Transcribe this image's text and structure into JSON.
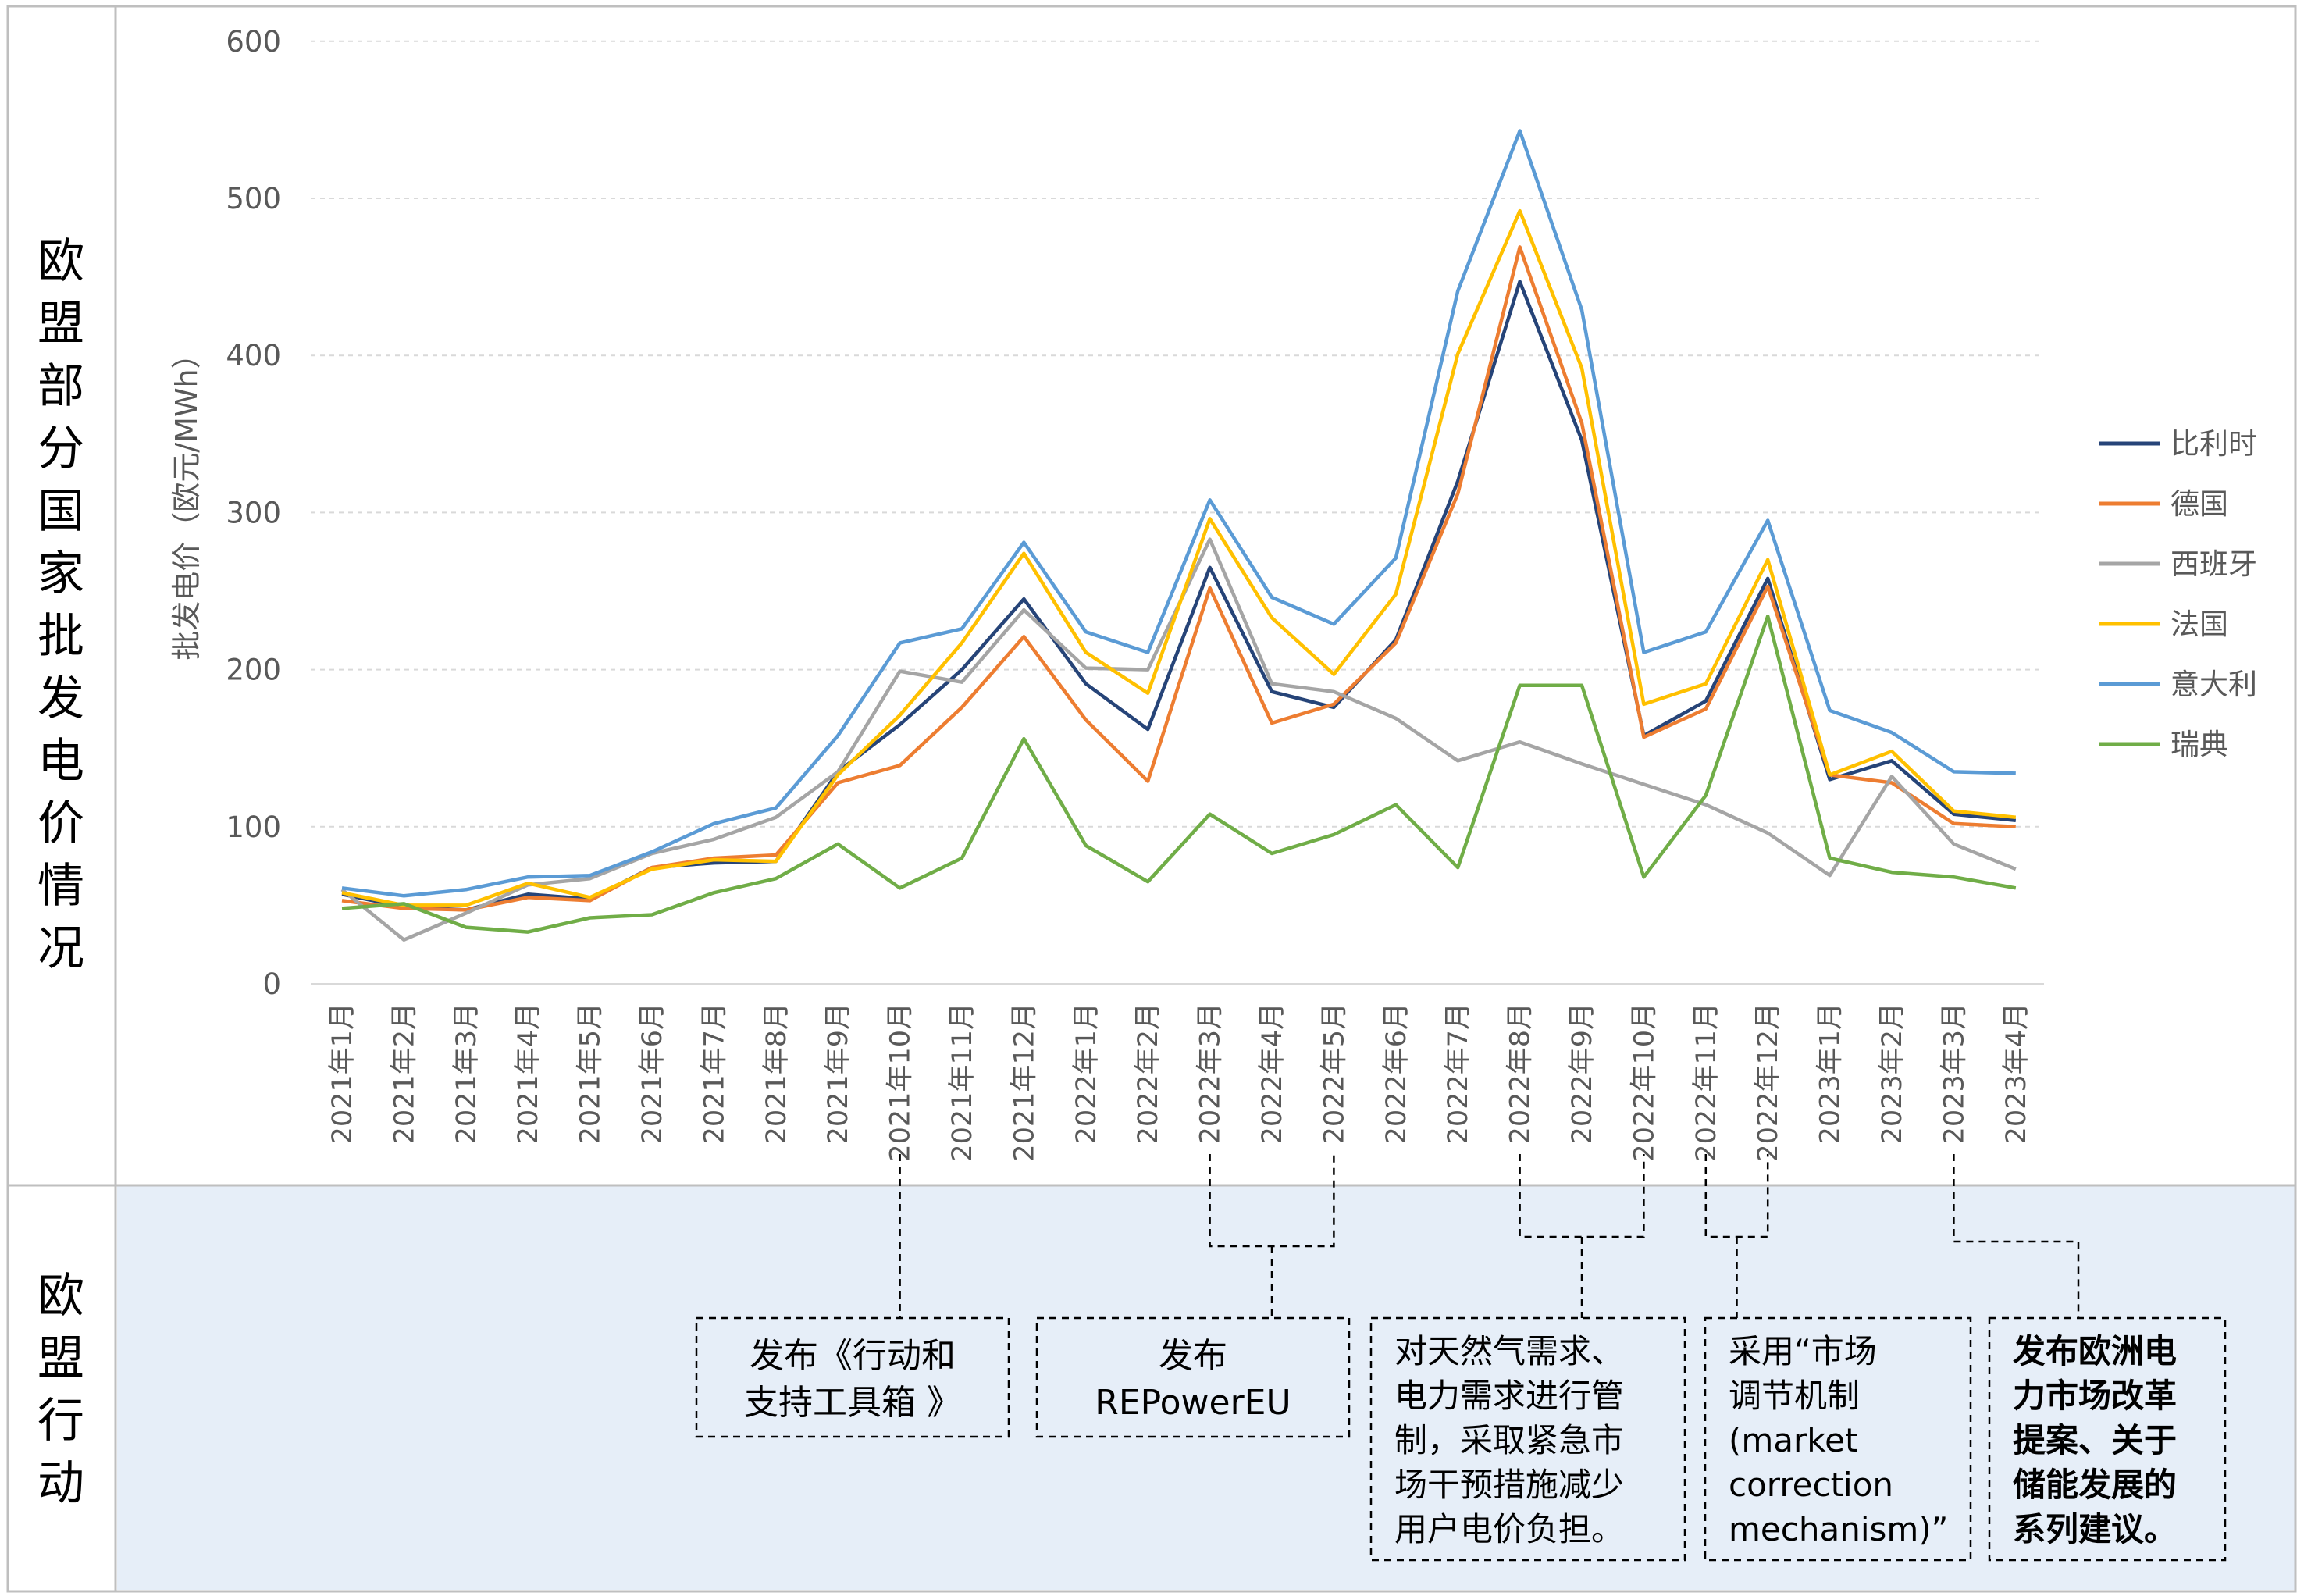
{
  "left_labels": {
    "top": [
      "欧",
      "盟",
      "部",
      "分",
      "国",
      "家",
      "批",
      "发",
      "电",
      "价",
      "情",
      "况"
    ],
    "bottom": [
      "欧",
      "盟",
      "行",
      "动"
    ]
  },
  "chart_data": {
    "type": "line",
    "ylabel": "批发电价（欧元/MWh）",
    "ylim": [
      0,
      600
    ],
    "yticks": [
      "0",
      "100",
      "200",
      "300",
      "400",
      "500",
      "600"
    ],
    "grid": true,
    "legend_position": "right",
    "categories": [
      "2021年1月",
      "2021年2月",
      "2021年3月",
      "2021年4月",
      "2021年5月",
      "2021年6月",
      "2021年7月",
      "2021年8月",
      "2021年9月",
      "2021年10月",
      "2021年11月",
      "2021年12月",
      "2022年1月",
      "2022年2月",
      "2022年3月",
      "2022年4月",
      "2022年5月",
      "2022年6月",
      "2022年7月",
      "2022年8月",
      "2022年9月",
      "2022年10月",
      "2022年11月",
      "2022年12月",
      "2023年1月",
      "2023年2月",
      "2023年3月",
      "2023年4月"
    ],
    "series": [
      {
        "name": "比利时",
        "color": "#264478",
        "values": [
          57,
          49,
          47,
          57,
          54,
          74,
          77,
          78,
          135,
          165,
          200,
          245,
          191,
          162,
          265,
          186,
          176,
          219,
          320,
          447,
          346,
          158,
          180,
          258,
          130,
          142,
          108,
          104
        ]
      },
      {
        "name": "德国",
        "color": "#ED7D31",
        "values": [
          53,
          48,
          47,
          55,
          53,
          74,
          80,
          82,
          128,
          139,
          176,
          221,
          168,
          129,
          252,
          166,
          178,
          217,
          312,
          469,
          357,
          157,
          175,
          253,
          133,
          128,
          102,
          100
        ]
      },
      {
        "name": "西班牙",
        "color": "#A5A5A5",
        "values": [
          60,
          28,
          45,
          63,
          67,
          83,
          92,
          106,
          135,
          199,
          192,
          238,
          201,
          200,
          283,
          191,
          186,
          169,
          142,
          154,
          140,
          127,
          114,
          96,
          69,
          132,
          89,
          73
        ]
      },
      {
        "name": "法国",
        "color": "#FFC000",
        "values": [
          58,
          50,
          50,
          64,
          55,
          73,
          79,
          78,
          133,
          171,
          217,
          274,
          211,
          185,
          296,
          233,
          197,
          248,
          401,
          492,
          392,
          178,
          191,
          270,
          133,
          148,
          110,
          106
        ]
      },
      {
        "name": "意大利",
        "color": "#5B9BD5",
        "values": [
          61,
          56,
          60,
          68,
          69,
          84,
          102,
          112,
          158,
          217,
          226,
          281,
          224,
          211,
          308,
          246,
          229,
          271,
          441,
          543,
          429,
          211,
          224,
          295,
          174,
          160,
          135,
          134
        ]
      },
      {
        "name": "瑞典",
        "color": "#70AD47",
        "values": [
          48,
          51,
          36,
          33,
          42,
          44,
          58,
          67,
          89,
          61,
          80,
          156,
          88,
          65,
          108,
          83,
          95,
          114,
          74,
          190,
          190,
          68,
          120,
          234,
          80,
          71,
          68,
          61
        ]
      }
    ]
  },
  "actions": [
    {
      "lines": [
        "发布《行动和",
        "支持工具箱 》"
      ],
      "bold": false
    },
    {
      "lines": [
        "发布",
        "REPowerEU"
      ],
      "bold": false
    },
    {
      "lines": [
        "对天然气需求、",
        "电力需求进行管",
        "制，采取紧急市",
        "场干预措施减少",
        "用户电价负担。"
      ],
      "bold": false
    },
    {
      "lines": [
        "采用“市场",
        "调节机制",
        "(market",
        "correction",
        "mechanism)”"
      ],
      "bold": false
    },
    {
      "lines": [
        "发布欧洲电",
        "力市场改革",
        "提案、关于",
        "储能发展的",
        "系列建议。"
      ],
      "bold": true
    }
  ],
  "colors": {
    "bottom_panel": "#E6EEF8",
    "border": "#BFBFBF",
    "grid": "#D9D9D9",
    "text": "#595959"
  }
}
